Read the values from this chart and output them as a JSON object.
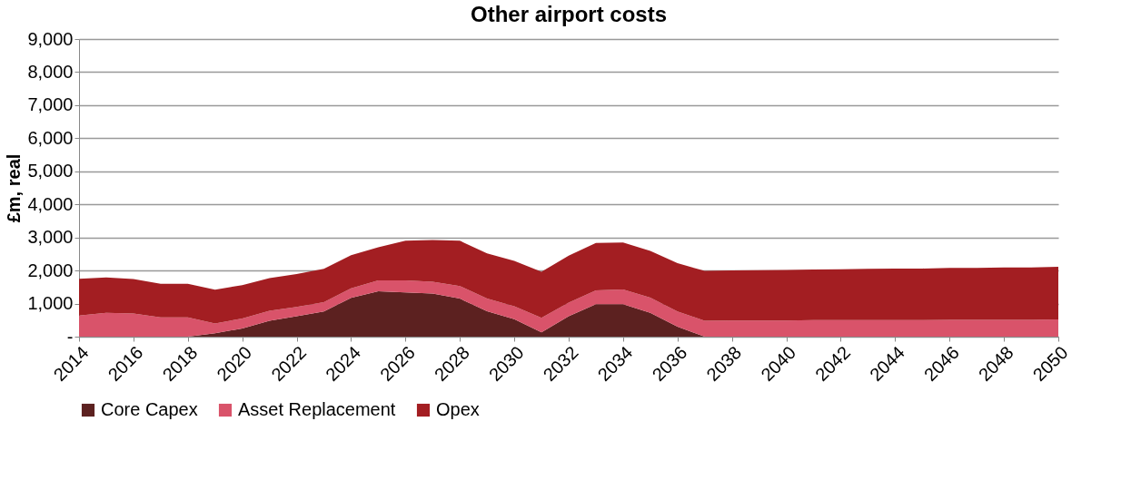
{
  "chart_data": {
    "type": "area",
    "title": "Other airport costs",
    "ylabel": "£m, real",
    "stacked": true,
    "x": [
      2014,
      2015,
      2016,
      2017,
      2018,
      2019,
      2020,
      2021,
      2022,
      2023,
      2024,
      2025,
      2026,
      2027,
      2028,
      2029,
      2030,
      2031,
      2032,
      2033,
      2034,
      2035,
      2036,
      2037,
      2038,
      2039,
      2040,
      2041,
      2042,
      2043,
      2044,
      2045,
      2046,
      2047,
      2048,
      2049,
      2050
    ],
    "series": [
      {
        "name": "Core Capex",
        "color": "#5c2120",
        "values": [
          0,
          0,
          0,
          0,
          0,
          100,
          250,
          480,
          620,
          760,
          1170,
          1370,
          1340,
          1300,
          1150,
          770,
          530,
          130,
          620,
          980,
          980,
          720,
          300,
          0,
          0,
          0,
          0,
          0,
          0,
          0,
          0,
          0,
          0,
          0,
          0,
          0,
          0
        ]
      },
      {
        "name": "Asset Replacement",
        "color": "#d9536a",
        "values": [
          640,
          720,
          700,
          580,
          580,
          300,
          300,
          300,
          280,
          280,
          290,
          330,
          360,
          360,
          380,
          380,
          390,
          440,
          410,
          420,
          450,
          460,
          460,
          480,
          490,
          490,
          490,
          500,
          500,
          500,
          500,
          500,
          510,
          510,
          510,
          510,
          520
        ]
      },
      {
        "name": "Opex",
        "color": "#a31e22",
        "values": [
          1110,
          1070,
          1040,
          1020,
          1020,
          1020,
          1010,
          990,
          990,
          1010,
          1000,
          1000,
          1200,
          1260,
          1370,
          1370,
          1370,
          1390,
          1420,
          1430,
          1420,
          1410,
          1460,
          1510,
          1510,
          1520,
          1530,
          1530,
          1540,
          1550,
          1560,
          1560,
          1570,
          1570,
          1580,
          1580,
          1590
        ]
      }
    ],
    "xlim": [
      2014,
      2050
    ],
    "xticks": [
      2014,
      2016,
      2018,
      2020,
      2022,
      2024,
      2026,
      2028,
      2030,
      2032,
      2034,
      2036,
      2038,
      2040,
      2042,
      2044,
      2046,
      2048,
      2050
    ],
    "ylim": [
      0,
      9000
    ],
    "yticks": [
      {
        "value": 0,
        "label": "-"
      },
      {
        "value": 1000,
        "label": "1,000"
      },
      {
        "value": 2000,
        "label": "2,000"
      },
      {
        "value": 3000,
        "label": "3,000"
      },
      {
        "value": 4000,
        "label": "4,000"
      },
      {
        "value": 5000,
        "label": "5,000"
      },
      {
        "value": 6000,
        "label": "6,000"
      },
      {
        "value": 7000,
        "label": "7,000"
      },
      {
        "value": 8000,
        "label": "8,000"
      },
      {
        "value": 9000,
        "label": "9,000"
      }
    ],
    "grid": "y",
    "legend": "bottom"
  }
}
